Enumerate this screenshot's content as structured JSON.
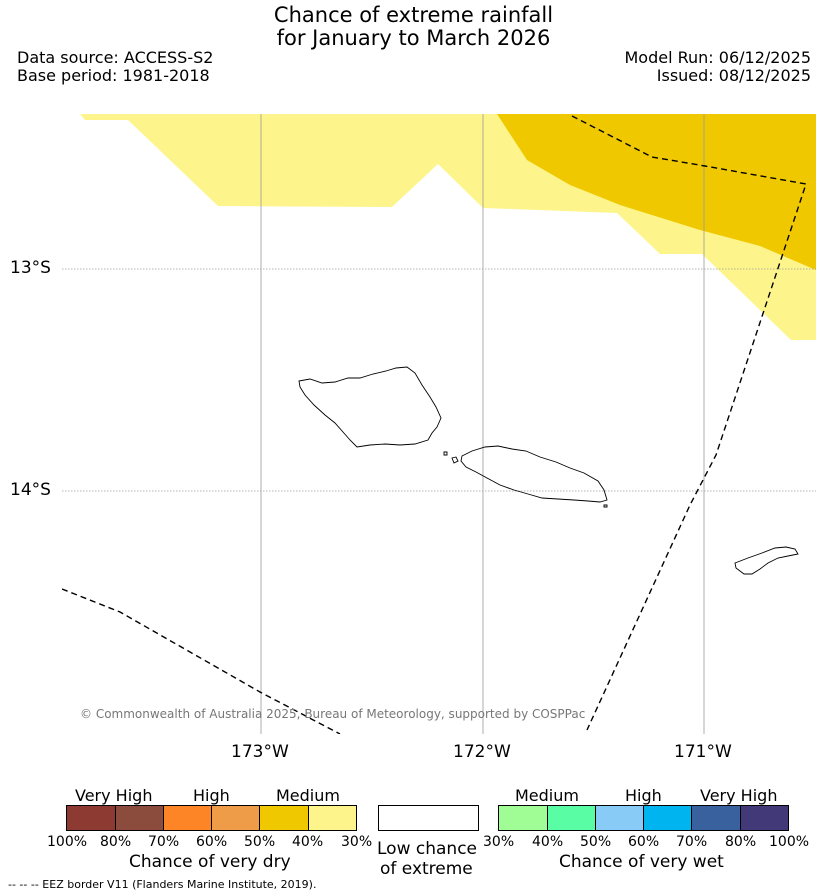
{
  "header": {
    "title_line1": "Chance of extreme rainfall",
    "title_line2": "for January to March 2026",
    "data_source": "Data source: ACCESS-S2",
    "base_period": "Base period: 1981-2018",
    "model_run": "Model Run: 06/12/2025",
    "issued": "Issued: 08/12/2025"
  },
  "map": {
    "lat_labels": [
      "13°S",
      "14°S"
    ],
    "lon_labels": [
      "173°W",
      "172°W",
      "171°W"
    ],
    "copyright": "© Commonwealth of Australia 2025, Bureau of Meteorology, supported by COSPPac",
    "colors": {
      "medium_dry_light": "#fdf58c",
      "medium_dry_dark": "#efc800",
      "coastline": "#000000",
      "gridline": "#9a9a9a"
    }
  },
  "legend": {
    "dry": {
      "categories": [
        "Very High",
        "High",
        "Medium"
      ],
      "ticks": [
        "100%",
        "80%",
        "70%",
        "60%",
        "50%",
        "40%",
        "30%"
      ],
      "colors": [
        "#8d3a32",
        "#8b4b3d",
        "#fd8526",
        "#ef9c48",
        "#efc800",
        "#fdf58c"
      ],
      "title": "Chance of very dry"
    },
    "low": {
      "line1": "Low chance",
      "line2": "of extreme"
    },
    "wet": {
      "categories": [
        "Medium",
        "High",
        "Very High"
      ],
      "ticks": [
        "30%",
        "40%",
        "50%",
        "60%",
        "70%",
        "80%",
        "100%"
      ],
      "colors": [
        "#a0fc94",
        "#58fda4",
        "#89cbf7",
        "#00b4ef",
        "#38619d",
        "#413978"
      ],
      "title": "Chance of very wet"
    }
  },
  "footer": {
    "eez_note": "--  --  -- EEZ border V11 (Flanders Marine Institute, 2019)."
  }
}
